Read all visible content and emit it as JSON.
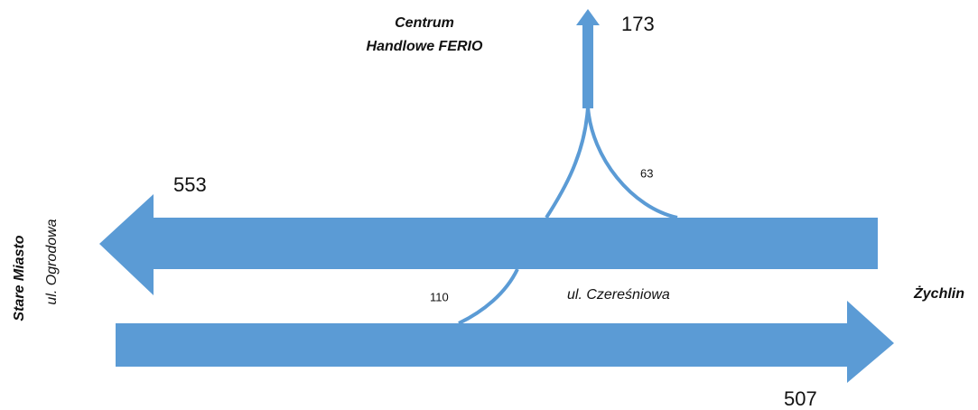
{
  "labels": {
    "north_destination": [
      "Centrum",
      "Handlowe FERIO"
    ],
    "west_destination": "Stare Miasto",
    "west_street": "ul. Ogrodowa",
    "east_destination": "Żychlin",
    "main_street": "ul. Czereśniowa"
  },
  "flows": {
    "westbound": 553,
    "eastbound": 507,
    "northbound": 173,
    "west_to_north": 63,
    "east_to_north": 110
  }
}
